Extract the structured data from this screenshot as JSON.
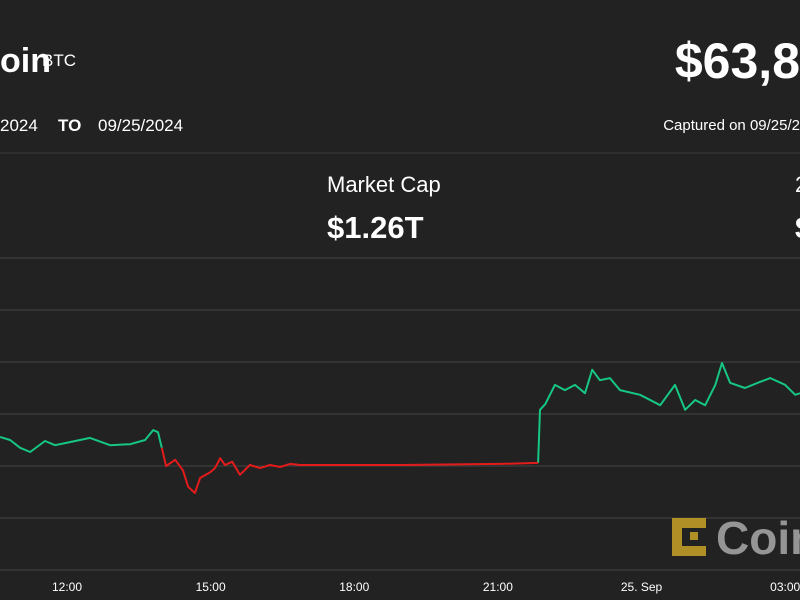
{
  "header": {
    "name": "oin",
    "symbol": "BTC",
    "price": "$63,8"
  },
  "range": {
    "from": "2024",
    "to_label": "TO",
    "to": "09/25/2024",
    "captured": "Captured on 09/25/2"
  },
  "stats": [
    {
      "label": "Market Cap",
      "value": "$1.26T"
    },
    {
      "label": "2",
      "value": "$"
    }
  ],
  "watermark": "Coin",
  "chart_data": {
    "type": "line",
    "x": [
      10.6,
      10.81,
      11.02,
      11.23,
      11.54,
      11.75,
      12.06,
      12.48,
      12.9,
      13.32,
      13.63,
      13.8,
      13.9,
      13.98,
      14.07,
      14.26,
      14.42,
      14.53,
      14.67,
      14.78,
      14.99,
      15.09,
      15.2,
      15.3,
      15.45,
      15.61,
      15.82,
      16.03,
      16.24,
      16.45,
      16.66,
      16.87,
      18.96,
      21.05,
      21.84,
      21.88,
      21.99,
      22.19,
      22.4,
      22.61,
      22.82,
      22.97,
      23.13,
      23.34,
      23.55,
      23.97,
      24.39,
      24.7,
      24.91,
      25.12,
      25.33,
      25.54,
      25.68,
      25.85,
      26.16,
      26.48,
      26.69,
      27.0,
      27.21,
      27.31
    ],
    "series": [
      {
        "name": "up",
        "color": "#16c784",
        "values": [
          2.56,
          2.5,
          2.35,
          2.27,
          2.48,
          2.4,
          2.46,
          2.54,
          2.4,
          2.42,
          2.5,
          2.69,
          2.65,
          2.35,
          null,
          null,
          null,
          null,
          null,
          null,
          null,
          null,
          null,
          null,
          null,
          null,
          null,
          null,
          null,
          null,
          null,
          null,
          null,
          null,
          2.06,
          3.08,
          3.19,
          3.56,
          3.46,
          3.56,
          3.4,
          3.85,
          3.65,
          3.69,
          3.46,
          3.37,
          3.17,
          3.56,
          3.08,
          3.27,
          3.17,
          3.56,
          3.98,
          3.6,
          3.5,
          3.62,
          3.69,
          3.56,
          3.37,
          3.4
        ]
      },
      {
        "name": "down",
        "color": "#e31b1b",
        "values": [
          null,
          null,
          null,
          null,
          null,
          null,
          null,
          null,
          null,
          null,
          null,
          null,
          null,
          2.35,
          2.0,
          2.12,
          1.92,
          1.6,
          1.48,
          1.77,
          1.88,
          1.96,
          2.15,
          2.02,
          2.08,
          1.83,
          2.02,
          1.96,
          2.02,
          1.98,
          2.04,
          2.02,
          2.02,
          2.04,
          2.06,
          null,
          null,
          null,
          null,
          null,
          null,
          null,
          null,
          null,
          null,
          null,
          null,
          null,
          null,
          null,
          null,
          null,
          null,
          null,
          null,
          null,
          null,
          null,
          null,
          null
        ]
      }
    ],
    "xlim": [
      10.6,
      27.31
    ],
    "xticks": [
      {
        "value": 12,
        "label": "12:00"
      },
      {
        "value": 15,
        "label": "15:00"
      },
      {
        "value": 18,
        "label": "18:00"
      },
      {
        "value": 21,
        "label": "21:00"
      },
      {
        "value": 24,
        "label": "25. Sep"
      },
      {
        "value": 27,
        "label": "03:00"
      }
    ],
    "ylim": [
      0,
      6
    ],
    "yticks": [
      0,
      1,
      2,
      3,
      4,
      5,
      6
    ],
    "grid": true
  }
}
